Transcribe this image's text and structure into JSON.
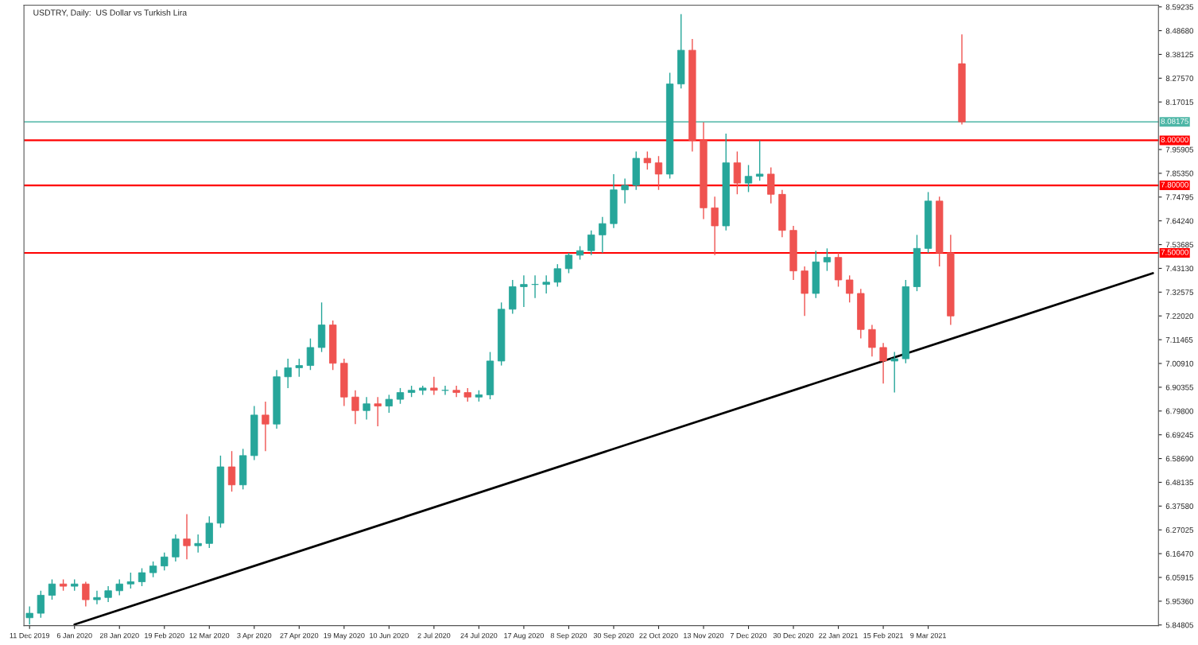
{
  "chart_data": {
    "type": "candlestick",
    "title": "USDTRY, Daily:  US Dollar vs Turkish Lira",
    "categories": [
      "11 Dec 2019",
      null,
      null,
      null,
      "6 Jan 2020",
      null,
      null,
      null,
      "28 Jan 2020",
      null,
      null,
      null,
      "19 Feb 2020",
      null,
      null,
      null,
      "12 Mar 2020",
      null,
      null,
      null,
      "3 Apr 2020",
      null,
      null,
      null,
      "27 Apr 2020",
      null,
      null,
      null,
      "19 May 2020",
      null,
      null,
      null,
      "10 Jun 2020",
      null,
      null,
      null,
      "2 Jul 2020",
      null,
      null,
      null,
      "24 Jul 2020",
      null,
      null,
      null,
      "17 Aug 2020",
      null,
      null,
      null,
      "8 Sep 2020",
      null,
      null,
      null,
      "30 Sep 2020",
      null,
      null,
      null,
      "22 Oct 2020",
      null,
      null,
      null,
      "13 Nov 2020",
      null,
      null,
      null,
      "7 Dec 2020",
      null,
      null,
      null,
      "30 Dec 2020",
      null,
      null,
      null,
      "22 Jan 2021",
      null,
      null,
      null,
      "15 Feb 2021",
      null,
      null,
      null,
      "9 Mar 2021",
      null,
      null,
      null,
      null,
      null,
      null,
      null,
      null,
      null,
      null,
      null,
      null,
      null,
      null,
      null,
      null,
      null,
      null,
      null,
      null
    ],
    "ohlc": [
      [
        5.88,
        5.93,
        5.85,
        5.9
      ],
      [
        5.9,
        6.0,
        5.88,
        5.98
      ],
      [
        5.98,
        6.05,
        5.96,
        6.03
      ],
      [
        6.03,
        6.05,
        6.0,
        6.02
      ],
      [
        6.02,
        6.05,
        6.0,
        6.03
      ],
      [
        6.03,
        6.04,
        5.93,
        5.96
      ],
      [
        5.96,
        6.0,
        5.94,
        5.97
      ],
      [
        5.97,
        6.02,
        5.95,
        6.0
      ],
      [
        6.0,
        6.05,
        5.98,
        6.03
      ],
      [
        6.03,
        6.08,
        6.01,
        6.04
      ],
      [
        6.04,
        6.1,
        6.02,
        6.08
      ],
      [
        6.08,
        6.13,
        6.06,
        6.11
      ],
      [
        6.11,
        6.17,
        6.09,
        6.15
      ],
      [
        6.15,
        6.25,
        6.13,
        6.23
      ],
      [
        6.23,
        6.34,
        6.14,
        6.2
      ],
      [
        6.2,
        6.25,
        6.17,
        6.21
      ],
      [
        6.21,
        6.33,
        6.19,
        6.3
      ],
      [
        6.3,
        6.6,
        6.28,
        6.55
      ],
      [
        6.55,
        6.62,
        6.44,
        6.47
      ],
      [
        6.47,
        6.63,
        6.45,
        6.6
      ],
      [
        6.6,
        6.82,
        6.58,
        6.78
      ],
      [
        6.78,
        6.84,
        6.62,
        6.74
      ],
      [
        6.74,
        6.98,
        6.72,
        6.95
      ],
      [
        6.95,
        7.03,
        6.9,
        6.99
      ],
      [
        6.99,
        7.03,
        6.95,
        7.0
      ],
      [
        7.0,
        7.12,
        6.98,
        7.08
      ],
      [
        7.08,
        7.28,
        7.06,
        7.18
      ],
      [
        7.18,
        7.2,
        6.98,
        7.01
      ],
      [
        7.01,
        7.03,
        6.82,
        6.86
      ],
      [
        6.86,
        6.89,
        6.74,
        6.8
      ],
      [
        6.8,
        6.86,
        6.76,
        6.83
      ],
      [
        6.83,
        6.86,
        6.73,
        6.82
      ],
      [
        6.82,
        6.87,
        6.79,
        6.85
      ],
      [
        6.85,
        6.9,
        6.83,
        6.88
      ],
      [
        6.88,
        6.91,
        6.86,
        6.89
      ],
      [
        6.89,
        6.91,
        6.87,
        6.9
      ],
      [
        6.9,
        6.95,
        6.87,
        6.89
      ],
      [
        6.89,
        6.91,
        6.87,
        6.89
      ],
      [
        6.89,
        6.91,
        6.86,
        6.88
      ],
      [
        6.88,
        6.9,
        6.84,
        6.86
      ],
      [
        6.86,
        6.89,
        6.84,
        6.87
      ],
      [
        6.87,
        7.06,
        6.85,
        7.02
      ],
      [
        7.02,
        7.28,
        7.0,
        7.25
      ],
      [
        7.25,
        7.38,
        7.23,
        7.35
      ],
      [
        7.35,
        7.4,
        7.26,
        7.36
      ],
      [
        7.36,
        7.4,
        7.3,
        7.36
      ],
      [
        7.36,
        7.4,
        7.32,
        7.37
      ],
      [
        7.37,
        7.45,
        7.35,
        7.43
      ],
      [
        7.43,
        7.5,
        7.41,
        7.49
      ],
      [
        7.49,
        7.53,
        7.47,
        7.51
      ],
      [
        7.51,
        7.6,
        7.49,
        7.58
      ],
      [
        7.58,
        7.66,
        7.5,
        7.63
      ],
      [
        7.63,
        7.85,
        7.61,
        7.78
      ],
      [
        7.78,
        7.83,
        7.72,
        7.8
      ],
      [
        7.8,
        7.95,
        7.78,
        7.92
      ],
      [
        7.92,
        7.95,
        7.87,
        7.9
      ],
      [
        7.9,
        7.93,
        7.78,
        7.85
      ],
      [
        7.85,
        8.3,
        7.83,
        8.25
      ],
      [
        8.25,
        8.56,
        8.23,
        8.4
      ],
      [
        8.4,
        8.45,
        7.95,
        8.0
      ],
      [
        8.0,
        8.08,
        7.65,
        7.7
      ],
      [
        7.7,
        7.75,
        7.49,
        7.62
      ],
      [
        7.62,
        8.03,
        7.6,
        7.9
      ],
      [
        7.9,
        7.95,
        7.76,
        7.81
      ],
      [
        7.81,
        7.89,
        7.77,
        7.84
      ],
      [
        7.84,
        8.0,
        7.82,
        7.85
      ],
      [
        7.85,
        7.88,
        7.72,
        7.76
      ],
      [
        7.76,
        7.78,
        7.57,
        7.6
      ],
      [
        7.6,
        7.62,
        7.38,
        7.42
      ],
      [
        7.42,
        7.44,
        7.22,
        7.32
      ],
      [
        7.32,
        7.51,
        7.3,
        7.46
      ],
      [
        7.46,
        7.52,
        7.42,
        7.48
      ],
      [
        7.48,
        7.5,
        7.35,
        7.38
      ],
      [
        7.38,
        7.4,
        7.28,
        7.32
      ],
      [
        7.32,
        7.34,
        7.12,
        7.16
      ],
      [
        7.16,
        7.18,
        7.04,
        7.08
      ],
      [
        7.08,
        7.1,
        6.92,
        7.02
      ],
      [
        7.02,
        7.06,
        6.88,
        7.03
      ],
      [
        7.03,
        7.38,
        7.01,
        7.35
      ],
      [
        7.35,
        7.58,
        7.33,
        7.52
      ],
      [
        7.52,
        7.77,
        7.5,
        7.73
      ],
      [
        7.73,
        7.75,
        7.44,
        7.5
      ],
      [
        7.5,
        7.58,
        7.18,
        7.22
      ],
      [
        8.34,
        8.47,
        8.07,
        8.08175
      ],
      null,
      null,
      null,
      null,
      null,
      null,
      null,
      null,
      null,
      null,
      null,
      null,
      null,
      null,
      null,
      null,
      null
    ],
    "colors": [
      "#26a69a",
      "#26a69a",
      "#26a69a",
      "#ef5350",
      "#26a69a",
      "#ef5350",
      "#26a69a",
      "#26a69a",
      "#26a69a",
      "#26a69a",
      "#26a69a",
      "#26a69a",
      "#26a69a",
      "#26a69a",
      "#ef5350",
      "#26a69a",
      "#26a69a",
      "#26a69a",
      "#ef5350",
      "#26a69a",
      "#26a69a",
      "#ef5350",
      "#26a69a",
      "#26a69a",
      "#26a69a",
      "#26a69a",
      "#26a69a",
      "#ef5350",
      "#ef5350",
      "#ef5350",
      "#26a69a",
      "#ef5350",
      "#26a69a",
      "#26a69a",
      "#26a69a",
      "#26a69a",
      "#ef5350",
      "#26a69a",
      "#ef5350",
      "#ef5350",
      "#26a69a",
      "#26a69a",
      "#26a69a",
      "#26a69a",
      "#26a69a",
      "#26a69a",
      "#26a69a",
      "#26a69a",
      "#26a69a",
      "#26a69a",
      "#26a69a",
      "#26a69a",
      "#26a69a",
      "#26a69a",
      "#26a69a",
      "#ef5350",
      "#ef5350",
      "#26a69a",
      "#26a69a",
      "#ef5350",
      "#ef5350",
      "#ef5350",
      "#26a69a",
      "#ef5350",
      "#26a69a",
      "#26a69a",
      "#ef5350",
      "#ef5350",
      "#ef5350",
      "#ef5350",
      "#26a69a",
      "#26a69a",
      "#ef5350",
      "#ef5350",
      "#ef5350",
      "#ef5350",
      "#ef5350",
      "#26a69a",
      "#26a69a",
      "#26a69a",
      "#26a69a",
      "#ef5350",
      "#ef5350",
      "#ef5350",
      null,
      null,
      null,
      null,
      null,
      null,
      null,
      null,
      null,
      null,
      null,
      null,
      null,
      null,
      null,
      null,
      null
    ],
    "series": [
      {
        "type": "line",
        "color": "#000000",
        "values": [
          null,
          null,
          null,
          null,
          5.85,
          null,
          null,
          null,
          null,
          null,
          null,
          null,
          null,
          null,
          null,
          null,
          null,
          null,
          null,
          null,
          null,
          null,
          null,
          null,
          null,
          null,
          null,
          null,
          null,
          null,
          null,
          null,
          null,
          null,
          null,
          null,
          null,
          null,
          null,
          null,
          null,
          null,
          null,
          null,
          null,
          null,
          null,
          null,
          null,
          null,
          null,
          null,
          null,
          null,
          null,
          null,
          null,
          null,
          null,
          null,
          null,
          null,
          null,
          null,
          null,
          null,
          null,
          null,
          null,
          null,
          null,
          null,
          null,
          null,
          null,
          null,
          null,
          null,
          null,
          null,
          null,
          null,
          null,
          null,
          null,
          null,
          null,
          null,
          null,
          null,
          null,
          null,
          null,
          null,
          null,
          null,
          null,
          null,
          null,
          null,
          7.41
        ]
      }
    ],
    "ylim": [
      5.845,
      8.6
    ],
    "yticks": [
      {
        "value": 8.59235,
        "label": "8.59235"
      },
      {
        "value": 8.4868,
        "label": "8.48680"
      },
      {
        "value": 8.38125,
        "label": "8.38125"
      },
      {
        "value": 8.2757,
        "label": "8.27570"
      },
      {
        "value": 8.17015,
        "label": "8.17015"
      },
      {
        "value": 7.95905,
        "label": "7.95905"
      },
      {
        "value": 7.8535,
        "label": "7.85350"
      },
      {
        "value": 7.74795,
        "label": "7.74795"
      },
      {
        "value": 7.6424,
        "label": "7.64240"
      },
      {
        "value": 7.53685,
        "label": "7.53685"
      },
      {
        "value": 7.4313,
        "label": "7.43130"
      },
      {
        "value": 7.32575,
        "label": "7.32575"
      },
      {
        "value": 7.2202,
        "label": "7.22020"
      },
      {
        "value": 7.11465,
        "label": "7.11465"
      },
      {
        "value": 7.0091,
        "label": "7.00910"
      },
      {
        "value": 6.90355,
        "label": "6.90355"
      },
      {
        "value": 6.798,
        "label": "6.79800"
      },
      {
        "value": 6.69245,
        "label": "6.69245"
      },
      {
        "value": 6.5869,
        "label": "6.58690"
      },
      {
        "value": 6.48135,
        "label": "6.48135"
      },
      {
        "value": 6.3758,
        "label": "6.37580"
      },
      {
        "value": 6.27025,
        "label": "6.27025"
      },
      {
        "value": 6.1647,
        "label": "6.16470"
      },
      {
        "value": 6.05915,
        "label": "6.05915"
      },
      {
        "value": 5.9536,
        "label": "5.95360"
      },
      {
        "value": 5.84805,
        "label": "5.84805"
      }
    ],
    "ref_lines": [
      {
        "axis": "y",
        "value": 8.08175,
        "label": "8.08175",
        "color": "#4db6a6"
      },
      {
        "axis": "y",
        "value": 8.0,
        "label": "8.00000",
        "color": "#ff0000"
      },
      {
        "axis": "y",
        "value": 7.8,
        "label": "7.80000",
        "color": "#ff0000"
      },
      {
        "axis": "y",
        "value": 7.5,
        "label": "7.50000",
        "color": "#ff0000"
      }
    ]
  }
}
